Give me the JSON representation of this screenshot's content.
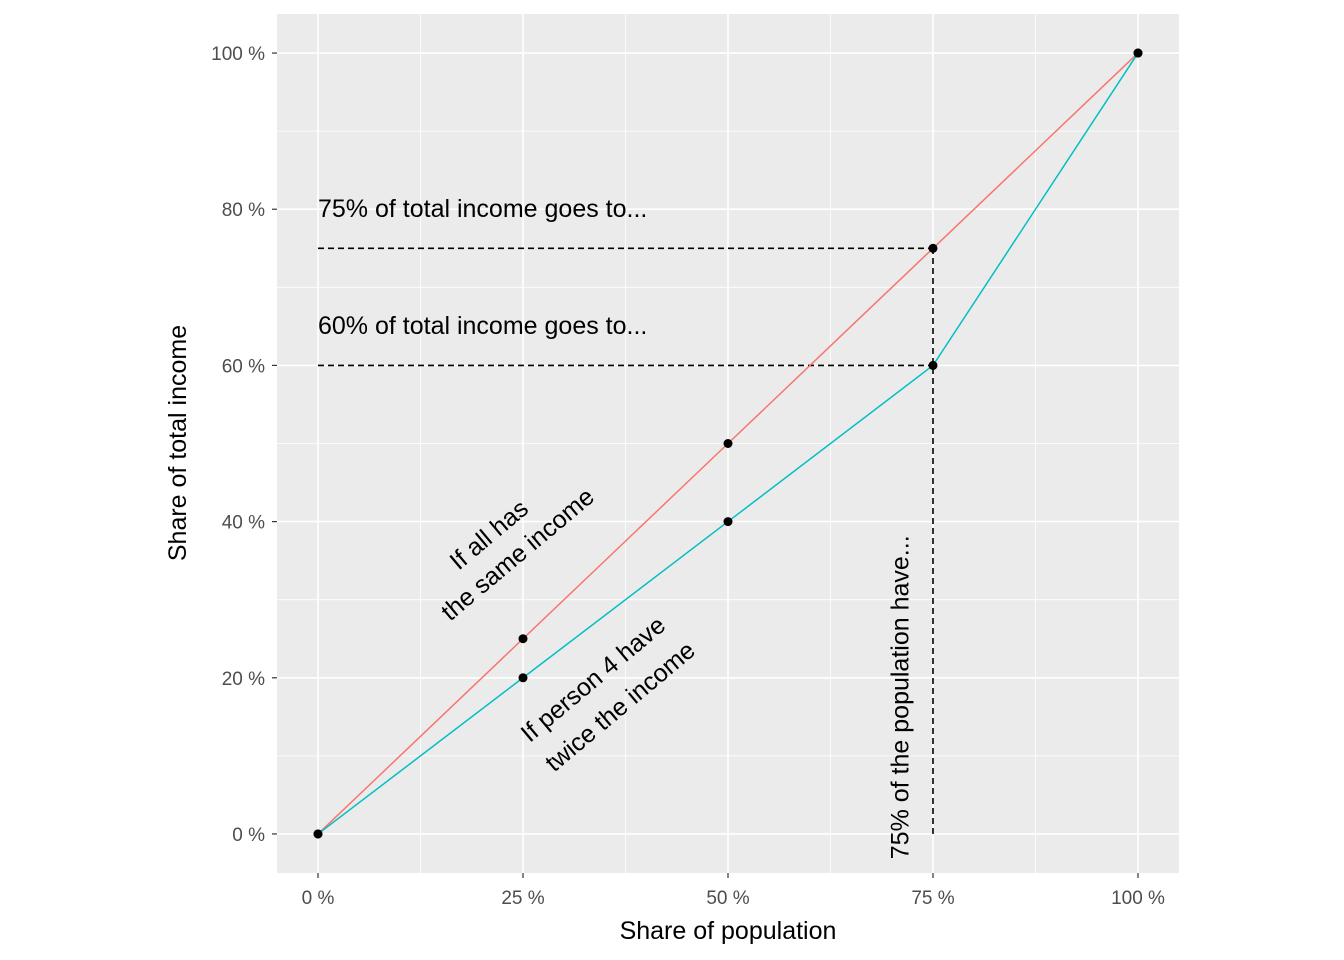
{
  "chart_data": {
    "type": "line",
    "title": "",
    "xlabel": "Share of population",
    "ylabel": "Share of total income",
    "xlim": [
      -0.05,
      1.05
    ],
    "ylim": [
      -0.05,
      1.05
    ],
    "x_ticks": [
      0,
      0.25,
      0.5,
      0.75,
      1.0
    ],
    "x_tick_labels": [
      "0 %",
      "25 %",
      "50 %",
      "75 %",
      "100 %"
    ],
    "y_ticks": [
      0,
      0.2,
      0.4,
      0.6,
      0.8,
      1.0
    ],
    "y_tick_labels": [
      "0 %",
      "20 %",
      "40 %",
      "60 %",
      "80 %",
      "100 %"
    ],
    "grid": true,
    "legend": "none",
    "colors": {
      "equal": "#F8766D",
      "unequal": "#00BFC4",
      "panel": "#EBEBEB",
      "grid": "#FFFFFF",
      "point": "#000000"
    },
    "series": [
      {
        "x": [
          0,
          0.25,
          0.5,
          0.75,
          1.0
        ],
        "y": [
          0,
          0.25,
          0.5,
          0.75,
          1.0
        ],
        "color": "#F8766D"
      },
      {
        "x": [
          0,
          0.25,
          0.5,
          0.75,
          1.0
        ],
        "y": [
          0,
          0.2,
          0.4,
          0.6,
          1.0
        ],
        "color": "#00BFC4"
      }
    ],
    "reference_lines": [
      {
        "from": [
          0,
          0.75
        ],
        "to": [
          0.75,
          0.75
        ],
        "style": "dashed"
      },
      {
        "from": [
          0,
          0.6
        ],
        "to": [
          0.75,
          0.6
        ],
        "style": "dashed"
      },
      {
        "from": [
          0.75,
          0
        ],
        "to": [
          0.75,
          0.75
        ],
        "style": "dashed"
      }
    ],
    "annotations": [
      {
        "text": "75% of total income goes to...",
        "x": 0,
        "y": 0.79,
        "angle": 0,
        "anchor": "start"
      },
      {
        "text": "60% of total income goes to...",
        "x": 0,
        "y": 0.64,
        "angle": 0,
        "anchor": "start"
      },
      {
        "text": "If all has",
        "x": 0.215,
        "y": 0.375,
        "angle": -40,
        "anchor": "middle"
      },
      {
        "text": "the same income",
        "x": 0.25,
        "y": 0.35,
        "angle": -40,
        "anchor": "middle"
      },
      {
        "text": "If person 4 have",
        "x": 0.342,
        "y": 0.19,
        "angle": -40,
        "anchor": "middle"
      },
      {
        "text": "twice the income",
        "x": 0.375,
        "y": 0.155,
        "angle": -40,
        "anchor": "middle"
      },
      {
        "text": "75% of the population have...",
        "x": 0.72,
        "y": 0.175,
        "angle": -90,
        "anchor": "middle"
      }
    ]
  }
}
